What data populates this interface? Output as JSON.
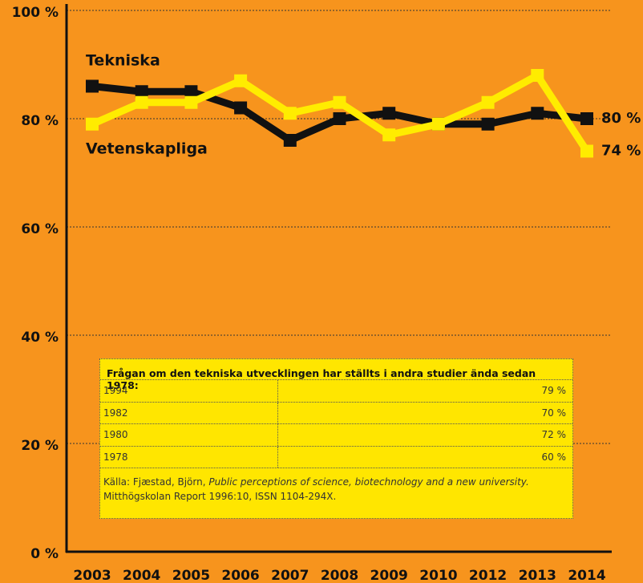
{
  "chart_data": {
    "type": "line",
    "categories": [
      "2003",
      "2004",
      "2005",
      "2006",
      "2007",
      "2008",
      "2009",
      "2010",
      "2012",
      "2013",
      "2014"
    ],
    "series": [
      {
        "name": "Tekniska",
        "color": "#111111",
        "values": [
          86,
          85,
          85,
          82,
          76,
          80,
          81,
          79,
          79,
          81,
          80
        ],
        "value_labels": [
          null,
          null,
          null,
          null,
          null,
          null,
          null,
          null,
          null,
          null,
          "80 %"
        ]
      },
      {
        "name": "Vetenskapliga",
        "color": "#ffec00",
        "values": [
          79,
          83,
          83,
          87,
          81,
          83,
          77,
          79,
          83,
          88,
          74
        ],
        "value_labels": [
          null,
          null,
          null,
          null,
          null,
          null,
          null,
          null,
          null,
          null,
          "74 %"
        ]
      }
    ],
    "ylim": [
      0,
      100
    ],
    "yticks": [
      {
        "value": 0,
        "label": "0 %"
      },
      {
        "value": 20,
        "label": "20 %"
      },
      {
        "value": 40,
        "label": "40 %"
      },
      {
        "value": 60,
        "label": "60 %"
      },
      {
        "value": 80,
        "label": "80 %"
      },
      {
        "value": 100,
        "label": "100 %"
      }
    ],
    "grid": true
  },
  "table": {
    "title": "Frågan om den tekniska utvecklingen har ställts i andra studier ända sedan 1978:",
    "rows": [
      [
        "1994",
        "79 %"
      ],
      [
        "1982",
        "70 %"
      ],
      [
        "1980",
        "72 %"
      ],
      [
        "1978",
        "60 %"
      ]
    ],
    "source": {
      "prefix": "Källa: Fjæstad, Björn, ",
      "italic": "Public perceptions of science, biotechnology and a new university.",
      "line2": "Mitthögskolan Report 1996:10, ISSN 1104-294X."
    }
  }
}
